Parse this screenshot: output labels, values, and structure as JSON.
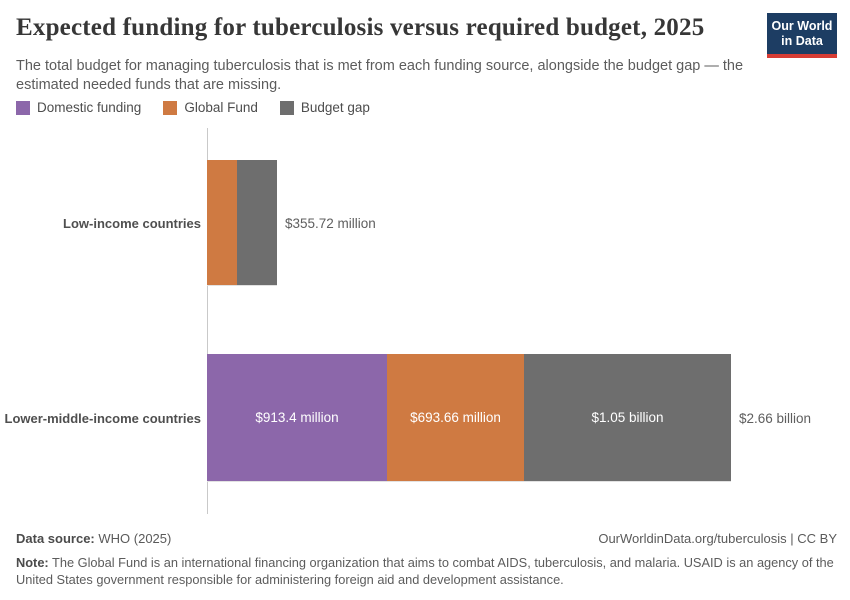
{
  "header": {
    "title": "Expected funding for tuberculosis versus required budget, 2025",
    "subtitle": "The total budget for managing tuberculosis that is met from each funding source, alongside the budget gap — the estimated needed funds that are missing.",
    "logo": {
      "line1": "Our World",
      "line2": "in Data",
      "bg_color": "#1d3d63",
      "accent_color": "#d73c34"
    }
  },
  "legend": {
    "items": [
      {
        "label": "Domestic funding",
        "color": "#8c67aa"
      },
      {
        "label": "Global Fund",
        "color": "#cf7a42"
      },
      {
        "label": "Budget gap",
        "color": "#6e6e6e"
      }
    ]
  },
  "chart_data": {
    "type": "bar",
    "orientation": "horizontal",
    "stacked": true,
    "title": "Expected funding for tuberculosis versus required budget, 2025",
    "unit": "US$",
    "x_axis_max_million_usd": 2660,
    "grid": false,
    "legend_position": "top-left",
    "categories": [
      "Low-income countries",
      "Lower-middle-income countries"
    ],
    "series_names": [
      "Domestic funding",
      "Global Fund",
      "Budget gap"
    ],
    "series_colors": {
      "Domestic funding": "#8c67aa",
      "Global Fund": "#cf7a42",
      "Budget gap": "#6e6e6e"
    },
    "rows": [
      {
        "category": "Low-income countries",
        "total_label": "$355.72 million",
        "total_million_usd": 355.72,
        "segments": [
          {
            "series": "Global Fund",
            "million_usd": 152.0,
            "label": ""
          },
          {
            "series": "Budget gap",
            "million_usd": 203.72,
            "label": ""
          }
        ]
      },
      {
        "category": "Lower-middle-income countries",
        "total_label": "$2.66 billion",
        "total_million_usd": 2660,
        "segments": [
          {
            "series": "Domestic funding",
            "million_usd": 913.4,
            "label": "$913.4 million"
          },
          {
            "series": "Global Fund",
            "million_usd": 693.66,
            "label": "$693.66 million"
          },
          {
            "series": "Budget gap",
            "million_usd": 1050,
            "label": "$1.05 billion"
          }
        ]
      }
    ]
  },
  "footer": {
    "data_source_label": "Data source:",
    "data_source_value": "WHO (2025)",
    "link": "OurWorldinData.org/tuberculosis | CC BY",
    "note_label": "Note:",
    "note_text": "The Global Fund is an international financing organization that aims to combat AIDS, tuberculosis, and malaria. USAID is an agency of the United States government responsible for administering foreign aid and development assistance."
  }
}
